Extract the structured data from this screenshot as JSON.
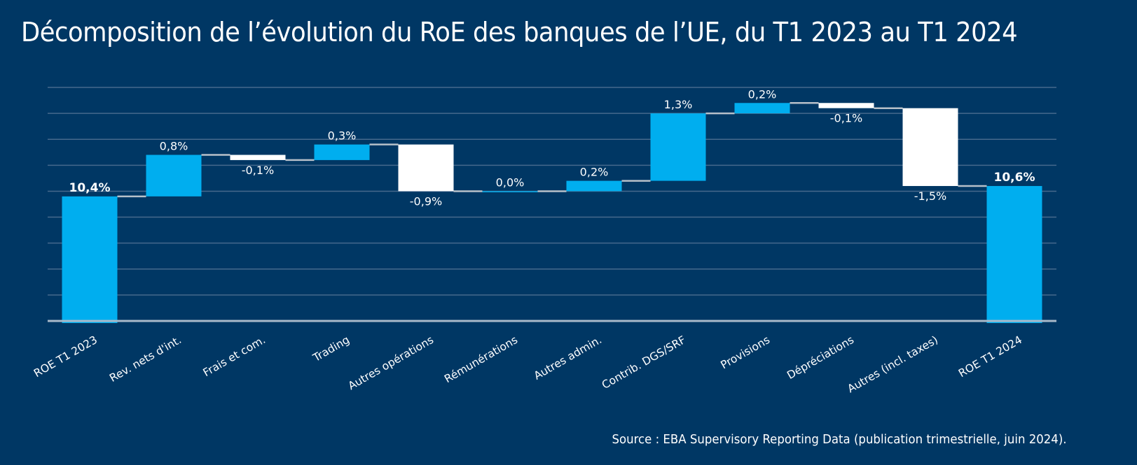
{
  "title": "Décomposition de l’évolution du RoE des banques de l’UE, du T1 2023 au T1 2024",
  "source": "Source : EBA Supervisory Reporting Data (publication trimestrielle, juin 2024).",
  "colors": {
    "background": "#003764",
    "increase": "#00aeef",
    "decrease": "#ffffff",
    "total": "#00aeef"
  },
  "chart_data": {
    "type": "bar",
    "subtype": "waterfall",
    "title": "Décomposition de l’évolution du RoE des banques de l’UE, du T1 2023 au T1 2024",
    "xlabel": "",
    "ylabel": "",
    "ylim": [
      8.0,
      12.5
    ],
    "grid": true,
    "grid_step": 0.5,
    "y_ticks_visible": false,
    "legend": "none",
    "categories": [
      "ROE T1 2023",
      "Rev. nets d'int.",
      "Frais et com.",
      "Trading",
      "Autres opérations",
      "Rémunérations",
      "Autres admin.",
      "Contrib. DGS/SRF",
      "Provisions",
      "Dépréciations",
      "Autres (incl. taxes)",
      "ROE T1 2024"
    ],
    "values": [
      10.4,
      0.8,
      -0.1,
      0.3,
      -0.9,
      0.0,
      0.2,
      1.3,
      0.2,
      -0.1,
      -1.5,
      10.6
    ],
    "kinds": [
      "total",
      "delta",
      "delta",
      "delta",
      "delta",
      "delta",
      "delta",
      "delta",
      "delta",
      "delta",
      "delta",
      "total"
    ],
    "data_labels": [
      "10,4%",
      "0,8%",
      "-0,1%",
      "0,3%",
      "-0,9%",
      "0,0%",
      "0,2%",
      "1,3%",
      "0,2%",
      "-0,1%",
      "-1,5%",
      "10,6%"
    ]
  }
}
